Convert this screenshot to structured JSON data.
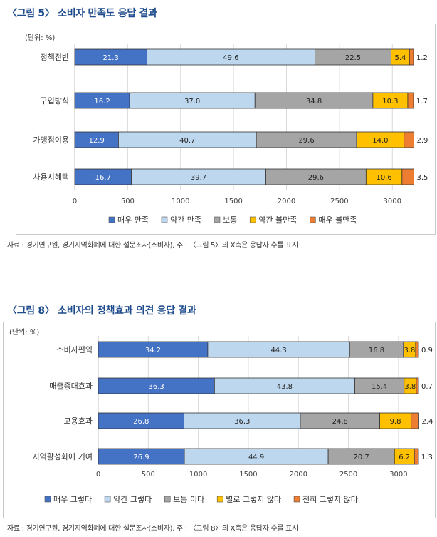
{
  "figures": [
    {
      "title": "〈그림 5〉 소비자 만족도 응답 결과",
      "source": "자료 : 경기연구원, 경기지역화폐에 대한 설문조사(소비자), 주 : 〈그림 5〉의 X축은 응답자 수를 표시"
    },
    {
      "title": "〈그림 8〉 소비자의 정책효과 의견 응답 결과",
      "source": "자료 : 경기연구원, 경기지역화폐에 대한 설문조사(소비자), 주 : 〈그림 8〉의 X축은 응답자 수를 표시"
    }
  ],
  "chart_data": [
    {
      "type": "bar",
      "orientation": "horizontal",
      "stacked": true,
      "unit_label": "(단위: %)",
      "categories": [
        "정책전반",
        "구입방식",
        "가맹점이용",
        "사용시혜택"
      ],
      "series": [
        {
          "name": "매우 만족",
          "color": "#4472c4",
          "values": [
            21.3,
            16.2,
            12.9,
            16.7
          ]
        },
        {
          "name": "약간 만족",
          "color": "#bdd7ee",
          "values": [
            49.6,
            37.0,
            40.7,
            39.7
          ]
        },
        {
          "name": "보통",
          "color": "#a5a5a5",
          "values": [
            22.5,
            34.8,
            29.6,
            29.6
          ]
        },
        {
          "name": "약간 불만족",
          "color": "#ffc000",
          "values": [
            5.4,
            10.3,
            14.0,
            10.6
          ]
        },
        {
          "name": "매우 불만족",
          "color": "#ed7d31",
          "values": [
            1.2,
            1.7,
            2.9,
            3.5
          ]
        }
      ],
      "total_respondents": 3200,
      "xlim": [
        0,
        3200
      ],
      "xticks": [
        0,
        500,
        1000,
        1500,
        2000,
        2500,
        3000
      ],
      "grid": true,
      "legend_position": "bottom"
    },
    {
      "type": "bar",
      "orientation": "horizontal",
      "stacked": true,
      "unit_label": "(단위: %)",
      "categories": [
        "소비자편익",
        "매출증대효과",
        "고용효과",
        "지역활성화에 기여"
      ],
      "series": [
        {
          "name": "매우 그렇다",
          "color": "#4472c4",
          "values": [
            34.2,
            36.3,
            26.8,
            26.9
          ]
        },
        {
          "name": "약간 그렇다",
          "color": "#bdd7ee",
          "values": [
            44.3,
            43.8,
            36.3,
            44.9
          ]
        },
        {
          "name": "보통 이다",
          "color": "#a5a5a5",
          "values": [
            16.8,
            15.4,
            24.8,
            20.7
          ]
        },
        {
          "name": "별로 그렇지 않다",
          "color": "#ffc000",
          "values": [
            3.8,
            3.8,
            9.8,
            6.2
          ]
        },
        {
          "name": "전혀 그렇지 않다",
          "color": "#ed7d31",
          "values": [
            0.9,
            0.7,
            2.4,
            1.3
          ]
        }
      ],
      "total_respondents": 3200,
      "xlim": [
        0,
        3200
      ],
      "xticks": [
        0,
        500,
        1000,
        1500,
        2000,
        2500,
        3000
      ],
      "grid": true,
      "legend_position": "bottom"
    }
  ]
}
